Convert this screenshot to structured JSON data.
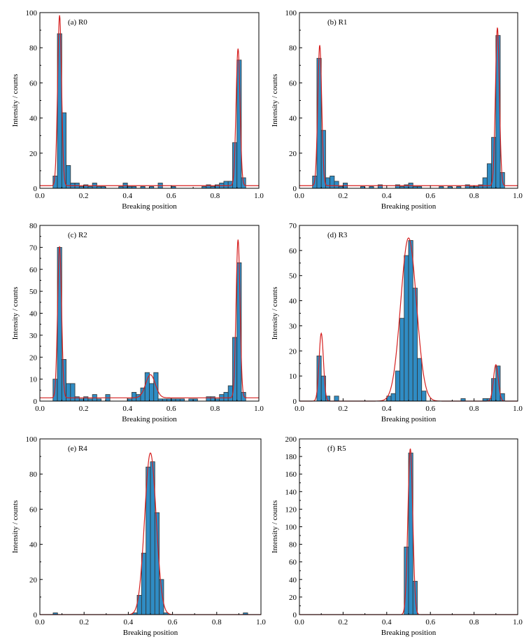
{
  "colors": {
    "bar_fill": "#2f8cc4",
    "bar_edge": "#333333",
    "fit_line": "#d62020",
    "axis": "#000000"
  },
  "chart_data": [
    {
      "type": "bar",
      "panel_label": "(a) R0",
      "xlabel": "Breaking position",
      "ylabel": "Intensity / counts",
      "xlim": [
        0,
        1
      ],
      "ylim": [
        0,
        100
      ],
      "xticks": [
        "0.0",
        "0.2",
        "0.4",
        "0.6",
        "0.8",
        "1.0"
      ],
      "yticks": [
        "0",
        "20",
        "40",
        "60",
        "80",
        "100"
      ],
      "bin_width": 0.02,
      "bin_centers": [
        0.07,
        0.09,
        0.11,
        0.13,
        0.15,
        0.17,
        0.19,
        0.21,
        0.23,
        0.25,
        0.27,
        0.29,
        0.37,
        0.39,
        0.41,
        0.43,
        0.47,
        0.51,
        0.55,
        0.61,
        0.75,
        0.77,
        0.79,
        0.81,
        0.83,
        0.85,
        0.87,
        0.89,
        0.91,
        0.93
      ],
      "values": [
        7,
        88,
        43,
        13,
        3,
        3,
        1,
        2,
        1,
        3,
        1,
        1,
        1,
        3,
        1,
        1,
        1,
        1,
        3,
        1,
        1,
        2,
        1,
        2,
        3,
        4,
        4,
        26,
        73,
        6
      ],
      "fit_peaks": [
        {
          "center": 0.09,
          "amplitude": 97,
          "sigma": 0.009
        },
        {
          "center": 0.905,
          "amplitude": 78,
          "sigma": 0.009
        }
      ],
      "fit_baseline": 1.5
    },
    {
      "type": "bar",
      "panel_label": "(b) R1",
      "xlabel": "Breaking position",
      "ylabel": "Intensity / counts",
      "xlim": [
        0,
        1
      ],
      "ylim": [
        0,
        100
      ],
      "xticks": [
        "0.0",
        "0.2",
        "0.4",
        "0.6",
        "0.8",
        "1.0"
      ],
      "yticks": [
        "0",
        "20",
        "40",
        "60",
        "80",
        "100"
      ],
      "bin_width": 0.02,
      "bin_centers": [
        0.07,
        0.09,
        0.11,
        0.13,
        0.15,
        0.17,
        0.19,
        0.21,
        0.29,
        0.33,
        0.37,
        0.45,
        0.47,
        0.49,
        0.51,
        0.53,
        0.55,
        0.65,
        0.69,
        0.73,
        0.77,
        0.79,
        0.81,
        0.83,
        0.85,
        0.87,
        0.89,
        0.91,
        0.93
      ],
      "values": [
        7,
        74,
        33,
        6,
        7,
        4,
        1,
        3,
        1,
        1,
        2,
        2,
        1,
        2,
        3,
        1,
        1,
        1,
        1,
        1,
        2,
        1,
        1,
        2,
        6,
        14,
        29,
        87,
        9
      ],
      "fit_peaks": [
        {
          "center": 0.093,
          "amplitude": 80,
          "sigma": 0.009
        },
        {
          "center": 0.907,
          "amplitude": 90,
          "sigma": 0.009
        }
      ],
      "fit_baseline": 1.5
    },
    {
      "type": "bar",
      "panel_label": "(c) R2",
      "xlabel": "Breaking position",
      "ylabel": "Intensity / counts",
      "xlim": [
        0,
        1
      ],
      "ylim": [
        0,
        80
      ],
      "xticks": [
        "0.0",
        "0.2",
        "0.4",
        "0.6",
        "0.8",
        "1.0"
      ],
      "yticks": [
        "0",
        "10",
        "20",
        "30",
        "40",
        "50",
        "60",
        "70",
        "80"
      ],
      "bin_width": 0.02,
      "bin_centers": [
        0.07,
        0.09,
        0.11,
        0.13,
        0.15,
        0.17,
        0.19,
        0.21,
        0.23,
        0.25,
        0.27,
        0.31,
        0.41,
        0.43,
        0.45,
        0.47,
        0.49,
        0.51,
        0.53,
        0.55,
        0.57,
        0.59,
        0.61,
        0.63,
        0.65,
        0.69,
        0.71,
        0.77,
        0.79,
        0.81,
        0.83,
        0.85,
        0.87,
        0.89,
        0.91,
        0.93
      ],
      "values": [
        10,
        70,
        19,
        8,
        8,
        2,
        1,
        2,
        1,
        3,
        1,
        3,
        1,
        4,
        3,
        6,
        13,
        8,
        13,
        1,
        1,
        1,
        1,
        1,
        1,
        1,
        1,
        2,
        2,
        1,
        3,
        4,
        7,
        29,
        63,
        4
      ],
      "fit_peaks": [
        {
          "center": 0.09,
          "amplitude": 69,
          "sigma": 0.009
        },
        {
          "center": 0.505,
          "amplitude": 10.5,
          "sigma": 0.022
        },
        {
          "center": 0.905,
          "amplitude": 72,
          "sigma": 0.009
        }
      ],
      "fit_baseline": 1.5
    },
    {
      "type": "bar",
      "panel_label": "(d) R3",
      "xlabel": "Breaking position",
      "ylabel": "Intensity / counts",
      "xlim": [
        0,
        1
      ],
      "ylim": [
        0,
        70
      ],
      "xticks": [
        "0.0",
        "0.2",
        "0.4",
        "0.6",
        "0.8",
        "1.0"
      ],
      "yticks": [
        "0",
        "10",
        "20",
        "30",
        "40",
        "50",
        "60",
        "70"
      ],
      "bin_width": 0.02,
      "bin_centers": [
        0.09,
        0.11,
        0.13,
        0.17,
        0.41,
        0.43,
        0.45,
        0.47,
        0.49,
        0.51,
        0.53,
        0.55,
        0.57,
        0.75,
        0.85,
        0.87,
        0.89,
        0.91,
        0.93
      ],
      "values": [
        18,
        10,
        2,
        2,
        2,
        3,
        12,
        33,
        58,
        64,
        45,
        17,
        4,
        1,
        1,
        1,
        9,
        14,
        3
      ],
      "fit_peaks": [
        {
          "center": 0.1,
          "amplitude": 27,
          "sigma": 0.01
        },
        {
          "center": 0.5,
          "amplitude": 65,
          "sigma": 0.036
        },
        {
          "center": 0.9,
          "amplitude": 14.5,
          "sigma": 0.011
        }
      ],
      "fit_baseline": 0
    },
    {
      "type": "bar",
      "panel_label": "(e) R4",
      "xlabel": "Breaking position",
      "ylabel": "Intensity / counts",
      "xlim": [
        0,
        1
      ],
      "ylim": [
        0,
        100
      ],
      "xticks": [
        "0.0",
        "0.2",
        "0.4",
        "0.6",
        "0.8",
        "1.0"
      ],
      "yticks": [
        "0",
        "20",
        "40",
        "60",
        "80",
        "100"
      ],
      "bin_width": 0.02,
      "bin_centers": [
        0.07,
        0.43,
        0.45,
        0.47,
        0.49,
        0.51,
        0.53,
        0.55,
        0.57,
        0.93
      ],
      "values": [
        1,
        1,
        11,
        35,
        84,
        87,
        58,
        20,
        1,
        1
      ],
      "fit_peaks": [
        {
          "center": 0.5,
          "amplitude": 92,
          "sigma": 0.026
        }
      ],
      "fit_baseline": 0
    },
    {
      "type": "bar",
      "panel_label": "(f) R5",
      "xlabel": "Breaking position",
      "ylabel": "Intensity / counts",
      "xlim": [
        0,
        1
      ],
      "ylim": [
        0,
        200
      ],
      "xticks": [
        "0.0",
        "0.2",
        "0.4",
        "0.6",
        "0.8",
        "1.0"
      ],
      "yticks": [
        "0",
        "20",
        "40",
        "60",
        "80",
        "100",
        "120",
        "140",
        "160",
        "180",
        "200"
      ],
      "bin_width": 0.02,
      "bin_centers": [
        0.49,
        0.51,
        0.53
      ],
      "values": [
        77,
        184,
        38
      ],
      "fit_peaks": [
        {
          "center": 0.508,
          "amplitude": 189,
          "sigma": 0.011
        }
      ],
      "fit_baseline": 0
    }
  ]
}
